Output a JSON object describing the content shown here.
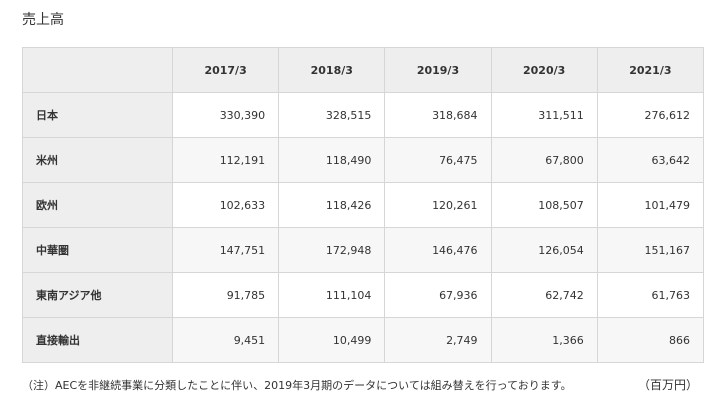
{
  "title": "売上高",
  "table": {
    "corner": "",
    "columns": [
      "2017/3",
      "2018/3",
      "2019/3",
      "2020/3",
      "2021/3"
    ],
    "rows": [
      {
        "label": "日本",
        "values": [
          "330,390",
          "328,515",
          "318,684",
          "311,511",
          "276,612"
        ]
      },
      {
        "label": "米州",
        "values": [
          "112,191",
          "118,490",
          "76,475",
          "67,800",
          "63,642"
        ]
      },
      {
        "label": "欧州",
        "values": [
          "102,633",
          "118,426",
          "120,261",
          "108,507",
          "101,479"
        ]
      },
      {
        "label": "中華圏",
        "values": [
          "147,751",
          "172,948",
          "146,476",
          "126,054",
          "151,167"
        ]
      },
      {
        "label": "東南アジア他",
        "values": [
          "91,785",
          "111,104",
          "67,936",
          "62,742",
          "61,763"
        ]
      },
      {
        "label": "直接輸出",
        "values": [
          "9,451",
          "10,499",
          "2,749",
          "1,366",
          "866"
        ]
      }
    ]
  },
  "note": "（注）AECを非継続事業に分類したことに伴い、2019年3月期のデータについては組み替えを行っております。",
  "unit": "（百万円）"
}
